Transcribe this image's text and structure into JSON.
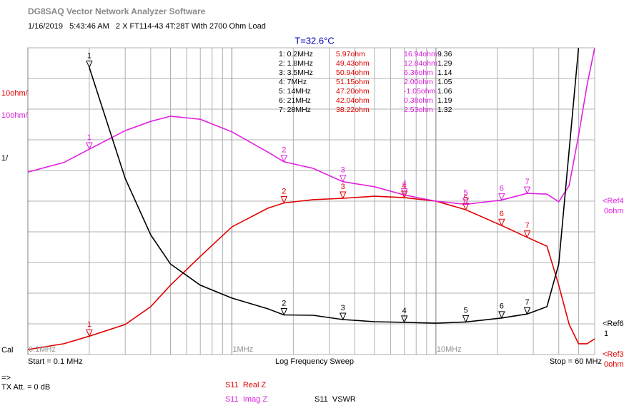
{
  "header": {
    "title": "DG8SAQ Vector Network Analyzer Software",
    "info": "1/16/2019   5:43:46 AM   2 X FT114-43 4T:28T With 2700 Ohm Load"
  },
  "chart_data": {
    "type": "line",
    "title": "T=32.6°C",
    "x": [
      0.1,
      0.15,
      0.2,
      0.3,
      0.4,
      0.5,
      0.7,
      1,
      1.5,
      1.8,
      2.5,
      3.5,
      5,
      7,
      10,
      14,
      21,
      28,
      35,
      40,
      45,
      50,
      55,
      60
    ],
    "xlim": [
      0.1,
      60
    ],
    "log_x": true,
    "xticks": [
      {
        "value": 0.1,
        "label": "0.1MHz"
      },
      {
        "value": 1,
        "label": "1MHz"
      },
      {
        "value": 10,
        "label": "10MHz"
      }
    ],
    "xminorticks": [
      0.2,
      0.3,
      0.4,
      0.5,
      0.6,
      0.7,
      0.8,
      0.9,
      2,
      3,
      4,
      5,
      6,
      7,
      8,
      9,
      20,
      30,
      40,
      50,
      60
    ],
    "ylim": [
      0,
      10
    ],
    "yticks": [
      0,
      1,
      2,
      3,
      4,
      5,
      6,
      7,
      8,
      9,
      10
    ],
    "grid": true,
    "series": [
      {
        "name": "S11  Real Z",
        "color": "#e00000",
        "scale_label": "10ohm/",
        "ylim": [
          0,
          100
        ],
        "ref_name": "<Ref3",
        "ref": {
          "value": 0,
          "label": "0ohm"
        },
        "values": [
          1.6,
          3.5,
          5.97,
          9.8,
          15.6,
          22.6,
          32,
          41.6,
          47.7,
          49.43,
          50.5,
          50.94,
          51.6,
          51.15,
          50,
          47.2,
          42.04,
          38.22,
          35.3,
          22.6,
          9.8,
          3.5,
          3.5,
          5.1
        ]
      },
      {
        "name": "S11  Imag Z",
        "color": "#e020e0",
        "scale_label": "10ohm/",
        "ylim": [
          -50,
          50
        ],
        "ref_name": "<Ref4",
        "ref": {
          "value": 0,
          "label": "0ohm"
        },
        "values": [
          9.5,
          12.6,
          16.94,
          23,
          26,
          27.7,
          26.7,
          22.6,
          16,
          12.84,
          10.7,
          6.36,
          4.7,
          2.0,
          0,
          -1.05,
          0.38,
          2.53,
          2.3,
          -0.2,
          5.1,
          21.4,
          37.7,
          50
        ]
      },
      {
        "name": "S11  VSWR",
        "color": "#000000",
        "scale_label": "1/",
        "ref_name": "<Ref6",
        "ref": 1,
        "values": [
          null,
          null,
          9.36,
          5.74,
          3.9,
          2.95,
          2.26,
          1.84,
          1.49,
          1.29,
          1.28,
          1.14,
          1.07,
          1.05,
          1.02,
          1.06,
          1.19,
          1.32,
          1.56,
          2.95,
          6.67,
          10,
          null,
          null
        ]
      }
    ],
    "markers": [
      1,
      2,
      3,
      4,
      5,
      6,
      7
    ],
    "marker_freqs": [
      0.2,
      1.8,
      3.5,
      7,
      14,
      21,
      28
    ],
    "marker_table": [
      [
        "1: 0.2MHz",
        "5.97ohm",
        "16.94ohm",
        "9.36"
      ],
      [
        "2: 1.8MHz",
        "49.43ohm",
        "12.84ohm",
        "1.29"
      ],
      [
        "3: 3.5MHz",
        "50.94ohm",
        "6.36ohm",
        "1.14"
      ],
      [
        "4: 7MHz",
        "51.15ohm",
        "2.00ohm",
        "1.05"
      ],
      [
        "5: 14MHz",
        "47.20ohm",
        "-1.05ohm",
        "1.06"
      ],
      [
        "6: 21MHz",
        "42.04ohm",
        "0.38ohm",
        "1.19"
      ],
      [
        "7: 28MHz",
        "38.22ohm",
        "2.53ohm",
        "1.32"
      ]
    ]
  },
  "footer": {
    "cal": "Cal",
    "start": "Start = 0.1 MHz",
    "sweep": "Log Frequency Sweep",
    "stop": "Stop = 60 MHz",
    "arrow": "=>",
    "tx_att": "TX Att. = 0 dB"
  }
}
